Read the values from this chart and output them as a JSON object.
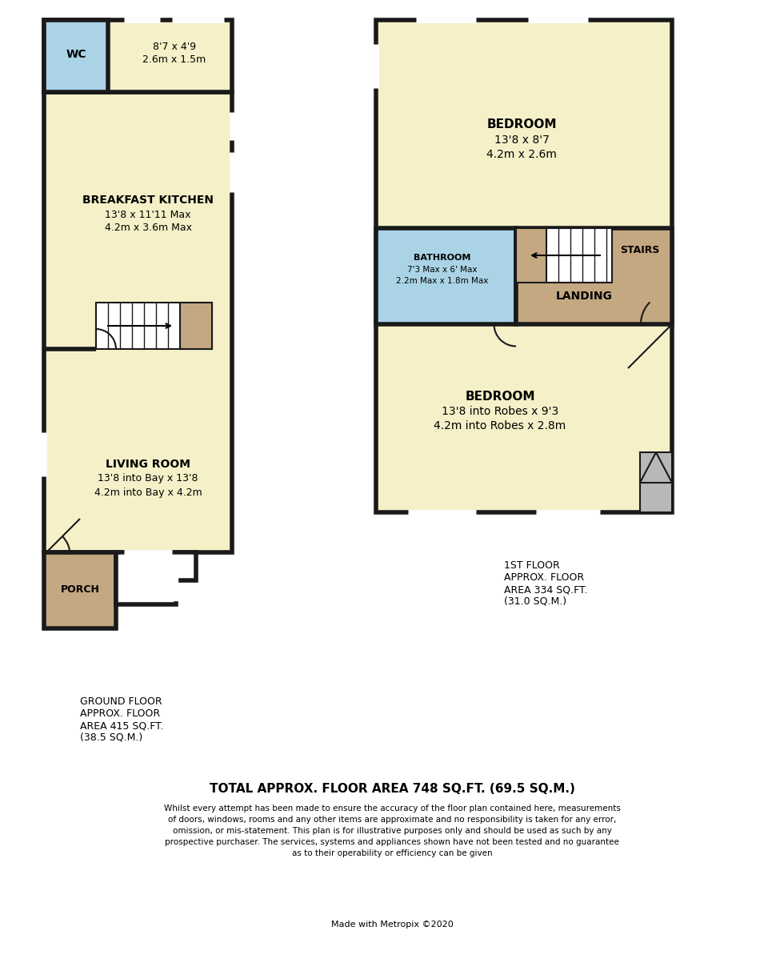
{
  "bg_color": "#ffffff",
  "wall_color": "#1a1a1a",
  "room_fill_yellow": "#f5f0c8",
  "room_fill_blue": "#aad4e6",
  "room_fill_tan": "#c4a882",
  "room_fill_white": "#ffffff",
  "room_fill_grey": "#b8b8b8",
  "wall_lw": 4.0,
  "thin_lw": 1.5,
  "total_area": "TOTAL APPROX. FLOOR AREA 748 SQ.FT. (69.5 SQ.M.)",
  "disclaimer_line1": "Whilst every attempt has been made to ensure the accuracy of the floor plan contained here, measurements",
  "disclaimer_line2": "of doors, windows, rooms and any other items are approximate and no responsibility is taken for any error,",
  "disclaimer_line3": "omission, or mis-statement. This plan is for illustrative purposes only and should be used as such by any",
  "disclaimer_line4": "prospective purchaser. The services, systems and appliances shown have not been tested and no guarantee",
  "disclaimer_line5": "as to their operability or efficiency can be given",
  "made_with": "Made with Metropix ©2020",
  "gf_text": "GROUND FLOOR\nAPPROX. FLOOR\nAREA 415 SQ.FT.\n(38.5 SQ.M.)",
  "ff_text": "1ST FLOOR\nAPPROX. FLOOR\nAREA 334 SQ.FT.\n(31.0 SQ.M.)"
}
